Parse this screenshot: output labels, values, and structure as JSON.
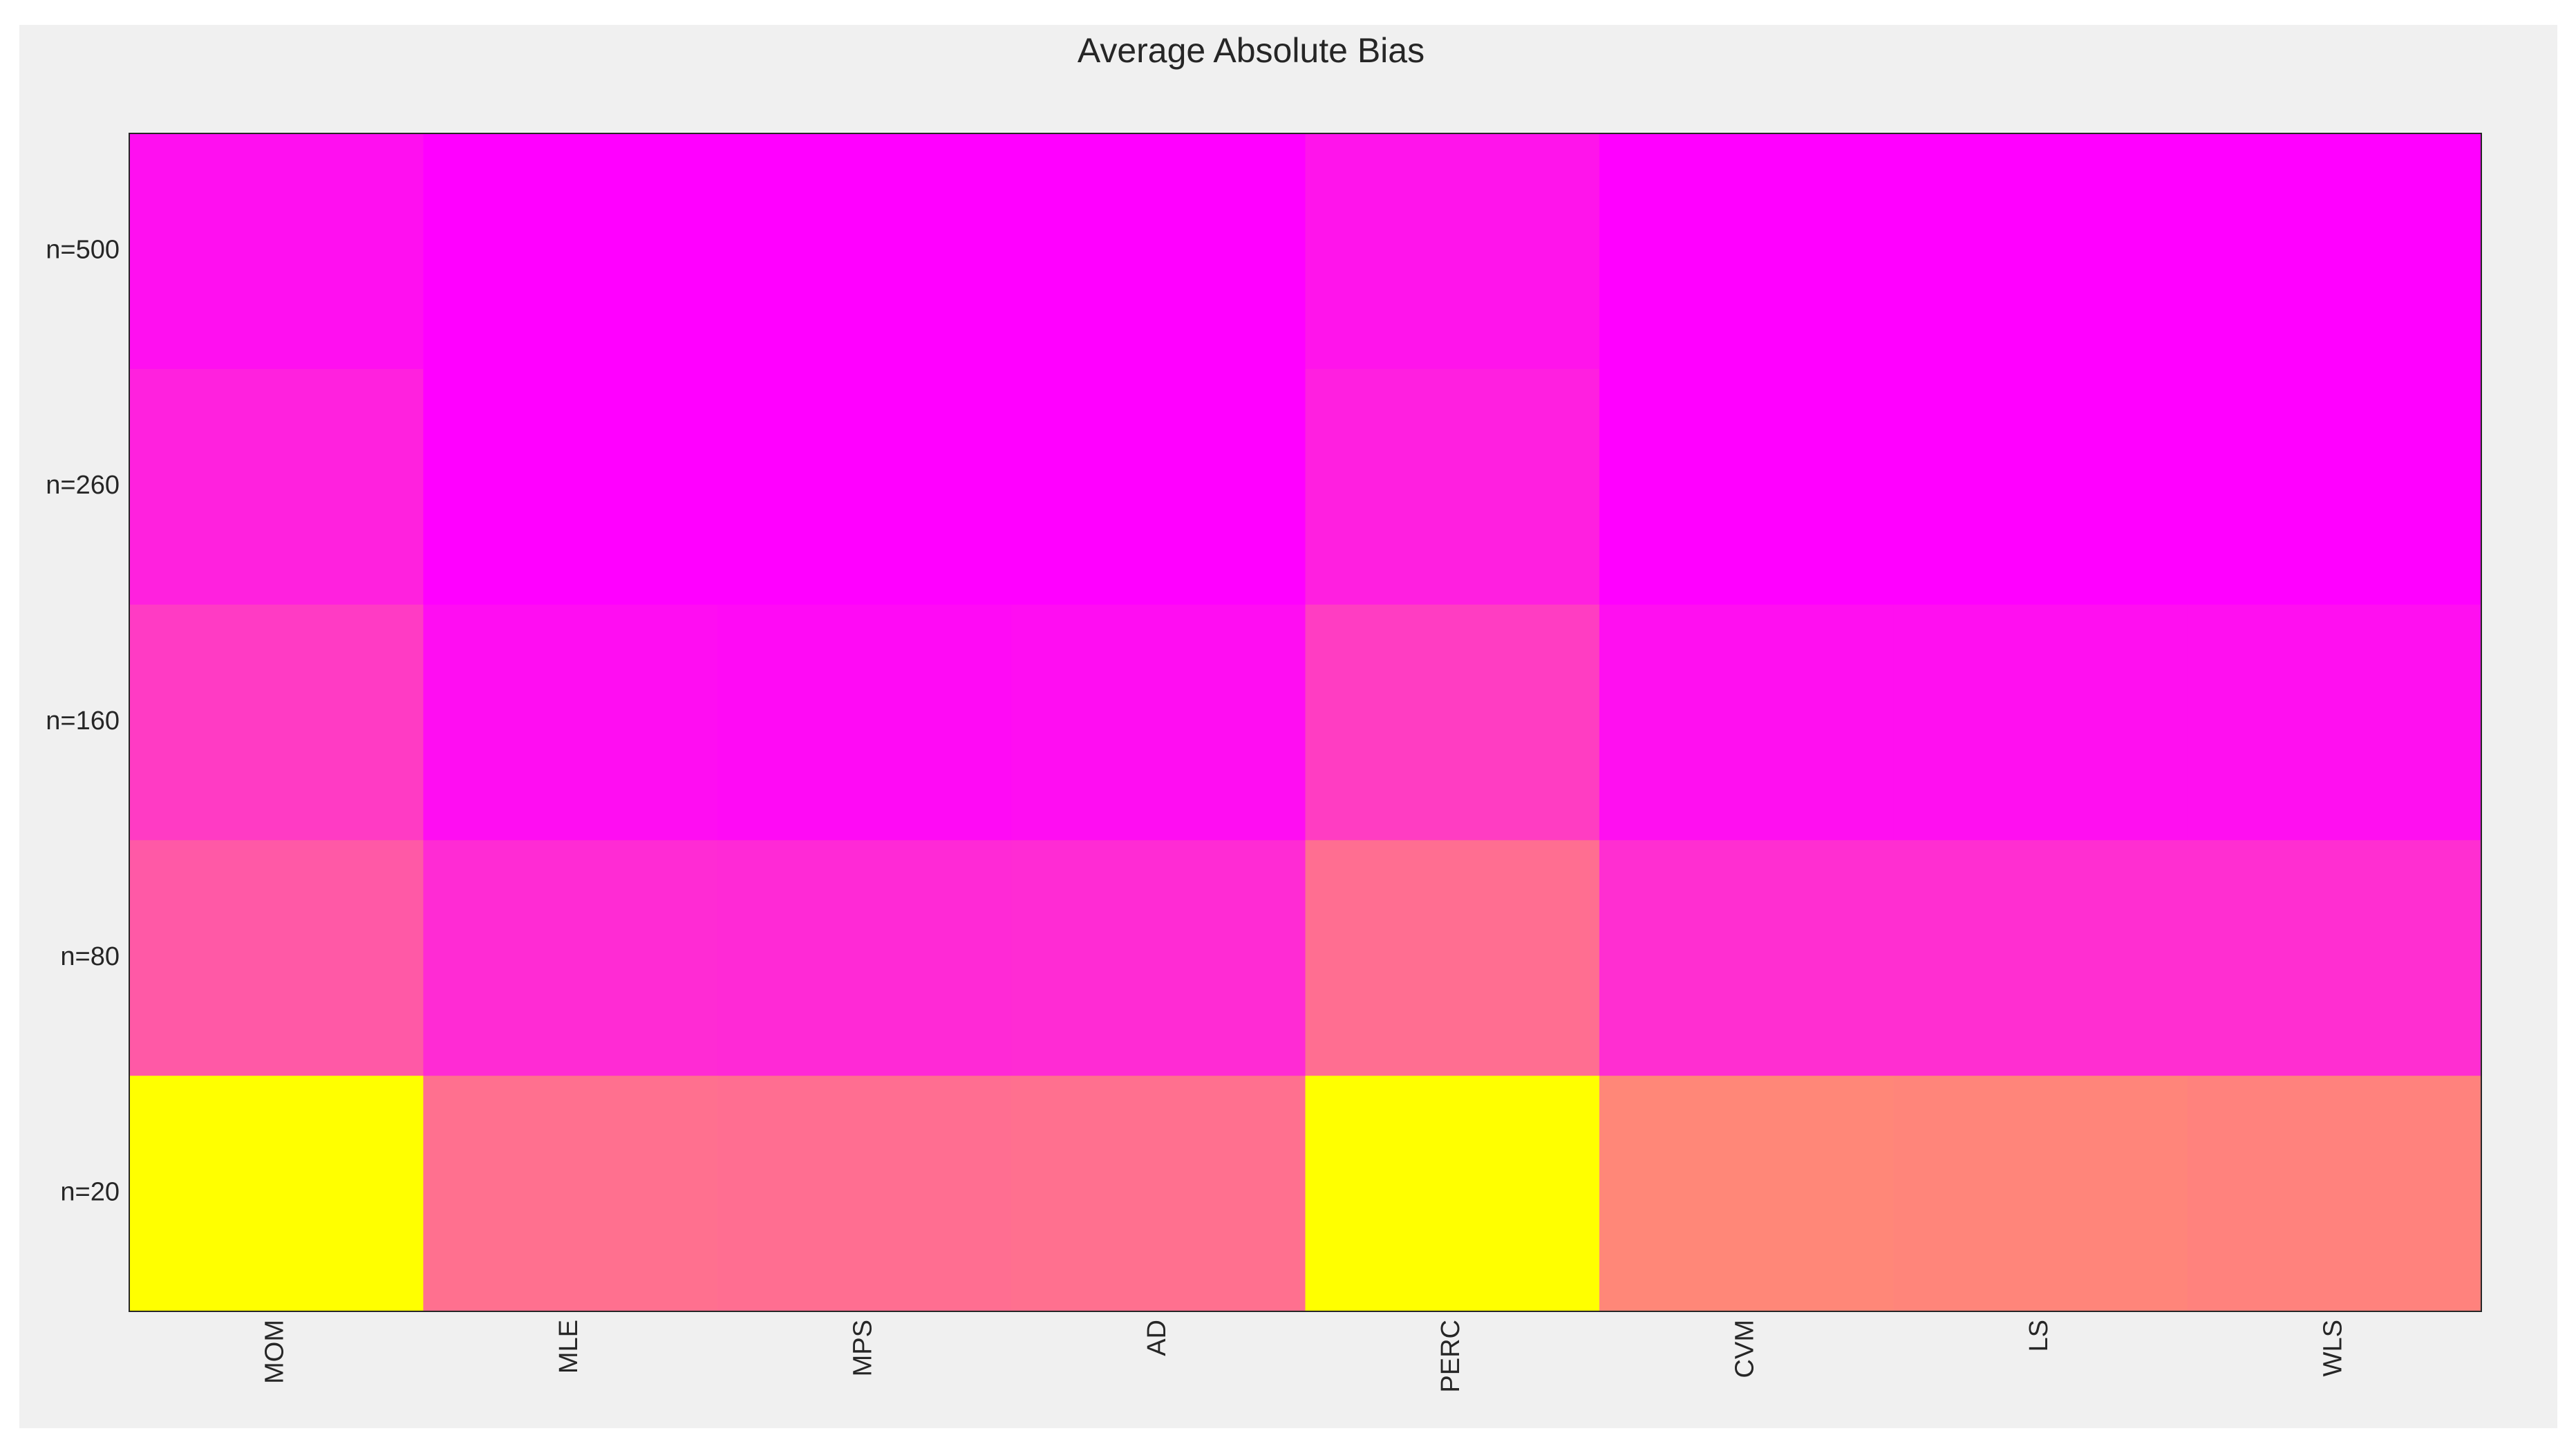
{
  "chart_data": {
    "type": "heatmap",
    "title": "Average Absolute Bias",
    "xlabel": "",
    "ylabel": "",
    "x_categories": [
      "MOM",
      "MLE",
      "MPS",
      "AD",
      "PERC",
      "CVM",
      "LS",
      "WLS"
    ],
    "y_categories": [
      "n=500",
      "n=260",
      "n=160",
      "n=80",
      "n=20"
    ],
    "colormap": "spring",
    "colormap_endpoints": [
      "#ff00ff",
      "#ffff00"
    ],
    "color_scale": [
      0,
      1
    ],
    "values": [
      [
        0.06,
        0.0,
        0.0,
        0.0,
        0.08,
        0.0,
        0.0,
        0.0
      ],
      [
        0.13,
        0.0,
        0.0,
        0.0,
        0.12,
        0.0,
        0.0,
        0.0
      ],
      [
        0.23,
        0.05,
        0.04,
        0.05,
        0.24,
        0.06,
        0.06,
        0.06
      ],
      [
        0.35,
        0.17,
        0.16,
        0.17,
        0.43,
        0.18,
        0.18,
        0.18
      ],
      [
        1.0,
        0.44,
        0.43,
        0.44,
        1.0,
        0.53,
        0.52,
        0.51
      ]
    ],
    "grid": false,
    "legend": "none"
  }
}
